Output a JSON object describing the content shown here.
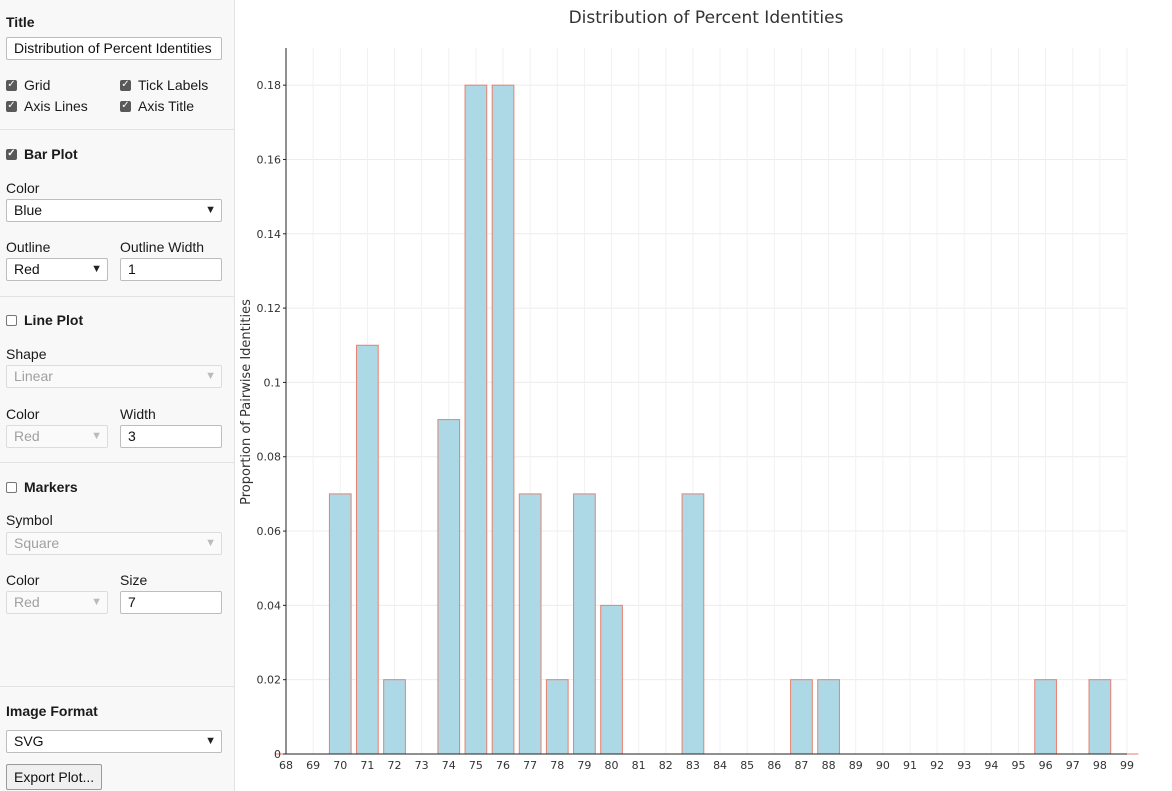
{
  "controls": {
    "title_label": "Title",
    "title_value": "Distribution of Percent Identities",
    "grid": {
      "label": "Grid",
      "checked": true
    },
    "tick_labels": {
      "label": "Tick Labels",
      "checked": true
    },
    "axis_lines": {
      "label": "Axis Lines",
      "checked": true
    },
    "axis_title": {
      "label": "Axis Title",
      "checked": true
    },
    "bar_plot": {
      "label": "Bar Plot",
      "checked": true
    },
    "bar_color_label": "Color",
    "bar_color_value": "Blue",
    "outline_label": "Outline",
    "outline_value": "Red",
    "outline_width_label": "Outline Width",
    "outline_width_value": "1",
    "line_plot": {
      "label": "Line Plot",
      "checked": false
    },
    "shape_label": "Shape",
    "shape_value": "Linear",
    "line_color_label": "Color",
    "line_color_value": "Red",
    "line_width_label": "Width",
    "line_width_value": "3",
    "markers": {
      "label": "Markers",
      "checked": false
    },
    "symbol_label": "Symbol",
    "symbol_value": "Square",
    "marker_color_label": "Color",
    "marker_color_value": "Red",
    "marker_size_label": "Size",
    "marker_size_value": "7",
    "image_format_label": "Image Format",
    "image_format_value": "SVG",
    "export_button": "Export Plot..."
  },
  "chart_data": {
    "type": "bar",
    "title": "Distribution of Percent Identities",
    "xlabel": "",
    "ylabel": "Proportion of Pairwise Identities",
    "categories": [
      "68",
      "69",
      "70",
      "71",
      "72",
      "73",
      "74",
      "75",
      "76",
      "77",
      "78",
      "79",
      "80",
      "81",
      "82",
      "83",
      "84",
      "85",
      "86",
      "87",
      "88",
      "89",
      "90",
      "91",
      "92",
      "93",
      "94",
      "95",
      "96",
      "97",
      "98",
      "99"
    ],
    "values": [
      0,
      0,
      0.07,
      0.11,
      0.02,
      0,
      0.09,
      0.18,
      0.18,
      0.07,
      0.02,
      0.07,
      0.04,
      0,
      0,
      0.07,
      0,
      0,
      0,
      0.02,
      0.02,
      0,
      0,
      0,
      0,
      0,
      0,
      0,
      0.02,
      0,
      0.02,
      0
    ],
    "ylim": [
      0,
      0.19
    ],
    "yticks": [
      0,
      0.02,
      0.04,
      0.06,
      0.08,
      0.1,
      0.12,
      0.14,
      0.16,
      0.18
    ],
    "ytick_labels": [
      "0",
      "0.02",
      "0.04",
      "0.06",
      "0.08",
      "0.1",
      "0.12",
      "0.14",
      "0.16",
      "0.18"
    ],
    "grid": true,
    "bar_fill": "#add8e6",
    "bar_outline": "#e9806e"
  }
}
